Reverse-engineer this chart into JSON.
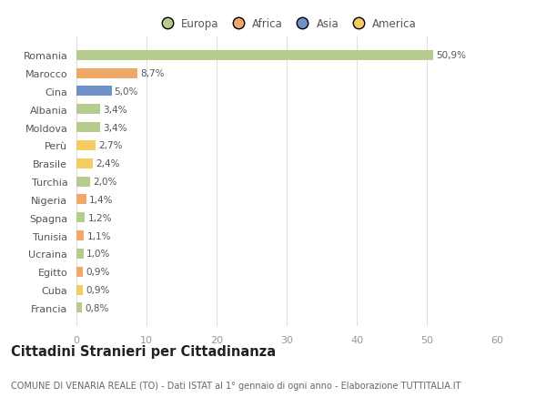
{
  "categories": [
    "Romania",
    "Marocco",
    "Cina",
    "Albania",
    "Moldova",
    "Perù",
    "Brasile",
    "Turchia",
    "Nigeria",
    "Spagna",
    "Tunisia",
    "Ucraina",
    "Egitto",
    "Cuba",
    "Francia"
  ],
  "values": [
    50.9,
    8.7,
    5.0,
    3.4,
    3.4,
    2.7,
    2.4,
    2.0,
    1.4,
    1.2,
    1.1,
    1.0,
    0.9,
    0.9,
    0.8
  ],
  "labels": [
    "50,9%",
    "8,7%",
    "5,0%",
    "3,4%",
    "3,4%",
    "2,7%",
    "2,4%",
    "2,0%",
    "1,4%",
    "1,2%",
    "1,1%",
    "1,0%",
    "0,9%",
    "0,9%",
    "0,8%"
  ],
  "colors": [
    "#b5cc8e",
    "#f0a868",
    "#7090c8",
    "#b5cc8e",
    "#b5cc8e",
    "#f5cc60",
    "#f5cc60",
    "#b5cc8e",
    "#f0a868",
    "#b5cc8e",
    "#f0a868",
    "#b5cc8e",
    "#f0a868",
    "#f5cc60",
    "#b5cc8e"
  ],
  "legend_labels": [
    "Europa",
    "Africa",
    "Asia",
    "America"
  ],
  "legend_colors": [
    "#b5cc8e",
    "#f0a868",
    "#7090c8",
    "#f5cc60"
  ],
  "title": "Cittadini Stranieri per Cittadinanza",
  "subtitle": "COMUNE DI VENARIA REALE (TO) - Dati ISTAT al 1° gennaio di ogni anno - Elaborazione TUTTITALIA.IT",
  "xlim": [
    0,
    60
  ],
  "xticks": [
    0,
    10,
    20,
    30,
    40,
    50,
    60
  ],
  "background_color": "#ffffff",
  "grid_color": "#e0e0e0",
  "bar_height": 0.55,
  "title_fontsize": 10.5,
  "subtitle_fontsize": 7,
  "label_fontsize": 7.5,
  "ytick_fontsize": 8,
  "xtick_fontsize": 8,
  "legend_fontsize": 8.5
}
